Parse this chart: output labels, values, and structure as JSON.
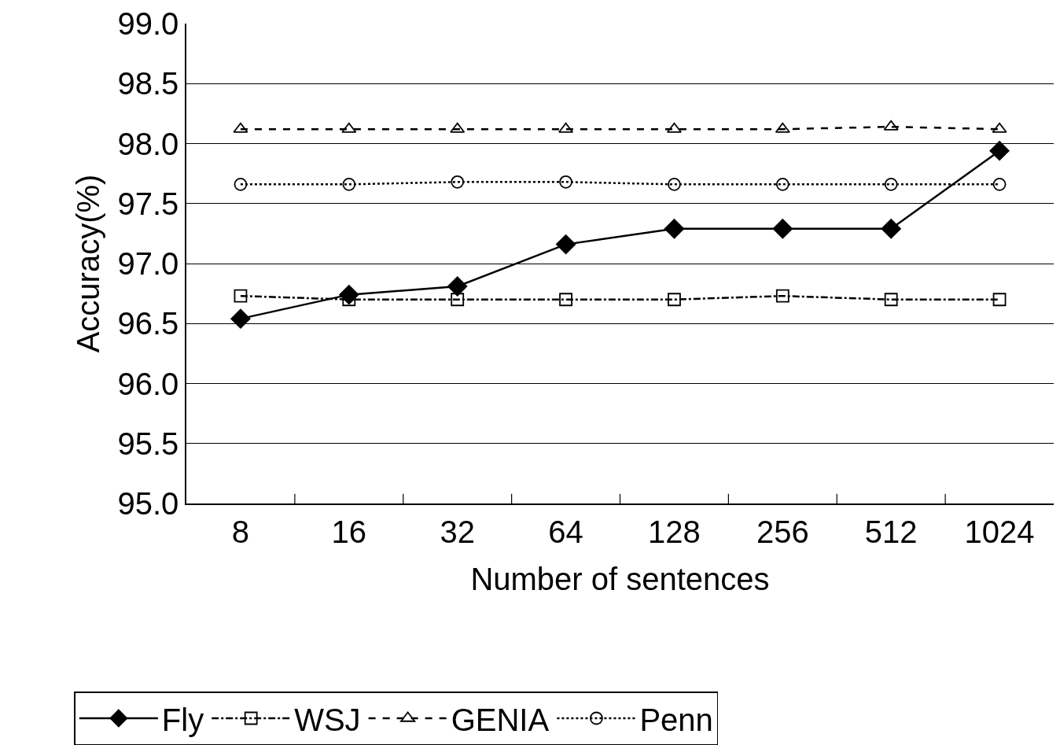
{
  "chart_data": {
    "type": "line",
    "xlabel": "Number of sentences",
    "ylabel": "Accuracy(%)",
    "categories": [
      "8",
      "16",
      "32",
      "64",
      "128",
      "256",
      "512",
      "1024"
    ],
    "series": [
      {
        "name": "Fly",
        "color": "#000000",
        "marker": "diamond",
        "line_style": "solid",
        "values": [
          96.54,
          96.74,
          96.81,
          97.16,
          97.29,
          97.29,
          97.29,
          97.94
        ]
      },
      {
        "name": "WSJ",
        "color": "#000000",
        "marker": "square",
        "line_style": "dashdot",
        "values": [
          96.73,
          96.7,
          96.7,
          96.7,
          96.7,
          96.73,
          96.7,
          96.7
        ]
      },
      {
        "name": "GENIA",
        "color": "#000000",
        "marker": "triangle",
        "line_style": "dashed",
        "values": [
          98.12,
          98.12,
          98.12,
          98.12,
          98.12,
          98.12,
          98.14,
          98.12
        ]
      },
      {
        "name": "Penn",
        "color": "#000000",
        "marker": "circle",
        "line_style": "dotted",
        "values": [
          97.66,
          97.66,
          97.68,
          97.68,
          97.66,
          97.66,
          97.66,
          97.66
        ]
      }
    ],
    "ylim": [
      95,
      99
    ],
    "yticks": [
      {
        "value": 95,
        "label": "95.0"
      },
      {
        "value": 95.5,
        "label": "95.5"
      },
      {
        "value": 96,
        "label": "96.0"
      },
      {
        "value": 96.5,
        "label": "96.5"
      },
      {
        "value": 97,
        "label": "97.0"
      },
      {
        "value": 97.5,
        "label": "97.5"
      },
      {
        "value": 98,
        "label": "98.0"
      },
      {
        "value": 98.5,
        "label": "98.5"
      },
      {
        "value": 99,
        "label": "99.0"
      }
    ],
    "grid": "y",
    "legend": "bottom"
  }
}
